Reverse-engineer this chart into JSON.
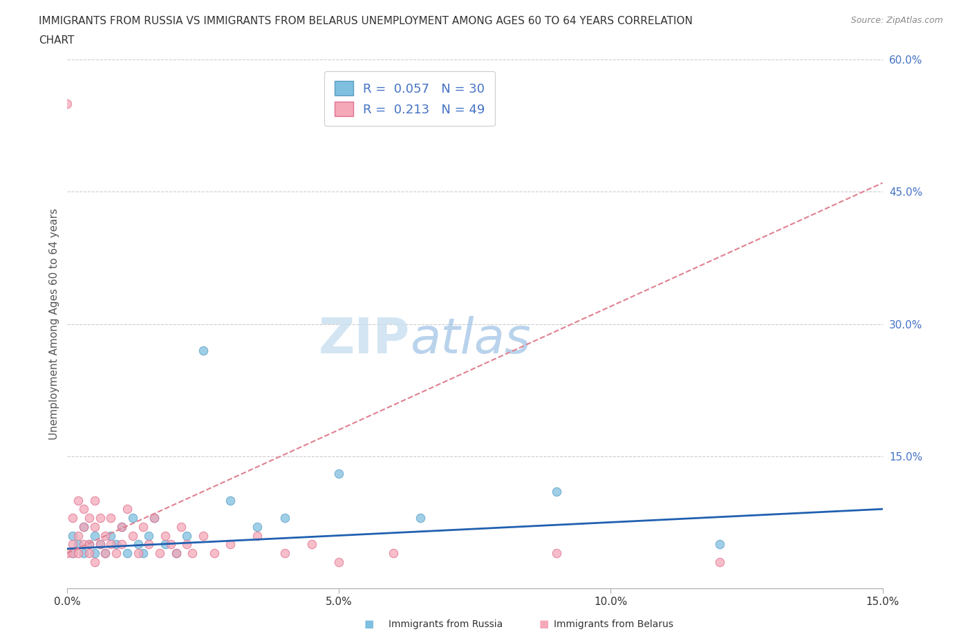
{
  "title_line1": "IMMIGRANTS FROM RUSSIA VS IMMIGRANTS FROM BELARUS UNEMPLOYMENT AMONG AGES 60 TO 64 YEARS CORRELATION",
  "title_line2": "CHART",
  "source": "Source: ZipAtlas.com",
  "ylabel": "Unemployment Among Ages 60 to 64 years",
  "xlim": [
    0.0,
    0.15
  ],
  "ylim": [
    0.0,
    0.6
  ],
  "xticks": [
    0.0,
    0.05,
    0.1,
    0.15
  ],
  "xtick_labels": [
    "0.0%",
    "5.0%",
    "10.0%",
    "15.0%"
  ],
  "yticks": [
    0.0,
    0.15,
    0.3,
    0.45,
    0.6
  ],
  "ytick_labels_right": [
    "",
    "15.0%",
    "30.0%",
    "45.0%",
    "60.0%"
  ],
  "russia_color": "#7fbfdf",
  "russia_edge": "#5a9ec4",
  "belarus_color": "#f4a8b8",
  "belarus_edge": "#e07090",
  "russia_trend_color": "#2060b0",
  "belarus_trend_color": "#e08090",
  "russia_R": 0.057,
  "russia_N": 30,
  "belarus_R": 0.213,
  "belarus_N": 49,
  "russia_scatter_x": [
    0.001,
    0.001,
    0.002,
    0.003,
    0.003,
    0.004,
    0.005,
    0.005,
    0.006,
    0.007,
    0.008,
    0.009,
    0.01,
    0.011,
    0.012,
    0.013,
    0.014,
    0.015,
    0.016,
    0.018,
    0.02,
    0.022,
    0.025,
    0.03,
    0.035,
    0.04,
    0.05,
    0.065,
    0.09,
    0.12
  ],
  "russia_scatter_y": [
    0.04,
    0.06,
    0.05,
    0.04,
    0.07,
    0.05,
    0.04,
    0.06,
    0.05,
    0.04,
    0.06,
    0.05,
    0.07,
    0.04,
    0.08,
    0.05,
    0.04,
    0.06,
    0.08,
    0.05,
    0.04,
    0.06,
    0.27,
    0.1,
    0.07,
    0.08,
    0.13,
    0.08,
    0.11,
    0.05
  ],
  "belarus_scatter_x": [
    0.0,
    0.0,
    0.001,
    0.001,
    0.001,
    0.002,
    0.002,
    0.002,
    0.003,
    0.003,
    0.003,
    0.004,
    0.004,
    0.004,
    0.005,
    0.005,
    0.005,
    0.006,
    0.006,
    0.007,
    0.007,
    0.008,
    0.008,
    0.009,
    0.01,
    0.01,
    0.011,
    0.012,
    0.013,
    0.014,
    0.015,
    0.016,
    0.017,
    0.018,
    0.019,
    0.02,
    0.021,
    0.022,
    0.023,
    0.025,
    0.027,
    0.03,
    0.035,
    0.04,
    0.045,
    0.05,
    0.06,
    0.09,
    0.12
  ],
  "belarus_scatter_y": [
    0.04,
    0.55,
    0.05,
    0.08,
    0.04,
    0.06,
    0.1,
    0.04,
    0.07,
    0.05,
    0.09,
    0.04,
    0.08,
    0.05,
    0.03,
    0.07,
    0.1,
    0.05,
    0.08,
    0.04,
    0.06,
    0.05,
    0.08,
    0.04,
    0.07,
    0.05,
    0.09,
    0.06,
    0.04,
    0.07,
    0.05,
    0.08,
    0.04,
    0.06,
    0.05,
    0.04,
    0.07,
    0.05,
    0.04,
    0.06,
    0.04,
    0.05,
    0.06,
    0.04,
    0.05,
    0.03,
    0.04,
    0.04,
    0.03
  ],
  "watermark_zip": "ZIP",
  "watermark_atlas": "atlas",
  "background_color": "#ffffff",
  "grid_color": "#cccccc",
  "ytick_color": "#4472c4",
  "legend_text_color": "#4472c4"
}
